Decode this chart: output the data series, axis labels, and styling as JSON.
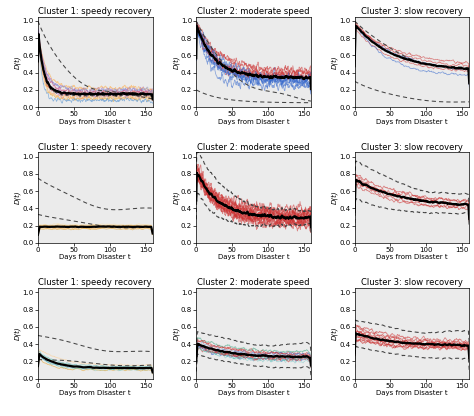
{
  "titles": [
    [
      "Cluster 1: speedy recovery",
      "Cluster 2: moderate speed",
      "Cluster 3: slow recovery"
    ],
    [
      "Cluster 1: speedy recovery",
      "Cluster 2: moderate speed",
      "Cluster 3: slow recovery"
    ],
    [
      "Cluster 1: speedy recovery",
      "Cluster 2: moderate speed",
      "Cluster 3: slow recovery"
    ]
  ],
  "xlabel": "Days from Disaster t",
  "ylabel": "D(t)",
  "xlim": [
    0,
    160
  ],
  "ylim": [
    0.0,
    1.05
  ],
  "yticks": [
    0.0,
    0.2,
    0.4,
    0.6,
    0.8,
    1.0
  ],
  "xticks": [
    0,
    50,
    100,
    150
  ],
  "background": "#ebebeb",
  "dashed_color": "#444444",
  "mean_color": "#000000",
  "row1_col1_colors": [
    "#E8A020",
    "#cc99ff",
    "#9966cc",
    "#ff9966",
    "#cc3366",
    "#4488cc",
    "#ffaa44",
    "#aa88dd",
    "#dd6644",
    "#8899cc",
    "#ffcc88",
    "#cc88aa"
  ],
  "row1_col2_colors": [
    "#cc3333",
    "#3366cc",
    "#cc3333",
    "#3366cc",
    "#cc3333",
    "#3366cc",
    "#cc3333",
    "#3366cc",
    "#cc3333",
    "#3366cc",
    "#cc3333",
    "#3366cc"
  ],
  "row1_col3_colors": [
    "#cc3333",
    "#3366cc",
    "#cc3333",
    "#cc3333",
    "#3366cc",
    "#cc3333"
  ],
  "row2_col1_colors": [
    "#E8A020",
    "#ffcc88",
    "#ffaa44",
    "#E8A020",
    "#ffdd99",
    "#E8A020",
    "#f5c060",
    "#ffbb55"
  ],
  "row2_col2_colors": [
    "#cc3333",
    "#cc3333",
    "#cc3333",
    "#cc3333",
    "#cc3333",
    "#cc3333",
    "#cc3333",
    "#cc3333",
    "#cc3333",
    "#cc3333",
    "#cc3333",
    "#cc3333",
    "#cc3333",
    "#cc3333"
  ],
  "row2_col3_colors": [
    "#cc3333",
    "#cc3333",
    "#cc3333",
    "#cc3333",
    "#cc3333",
    "#cc3333",
    "#cc3333"
  ],
  "row3_col1_colors": [
    "#E8A020",
    "#88cccc",
    "#44aaaa",
    "#E8A020",
    "#ffcc88",
    "#66aadd",
    "#88ddcc",
    "#55bbaa"
  ],
  "row3_col2_colors": [
    "#cc3333",
    "#3366cc",
    "#cc3333",
    "#88cccc",
    "#cc3333",
    "#44aa88",
    "#cc3333",
    "#3366cc",
    "#88aacc",
    "#cc3333",
    "#44bbaa",
    "#cc3333"
  ],
  "row3_col3_colors": [
    "#cc3333",
    "#cc3333",
    "#cc3333",
    "#cc3333",
    "#cc3333",
    "#cc3333",
    "#cc3333",
    "#cc3333",
    "#cc3333",
    "#cc3333",
    "#cc3333",
    "#cc3333"
  ]
}
